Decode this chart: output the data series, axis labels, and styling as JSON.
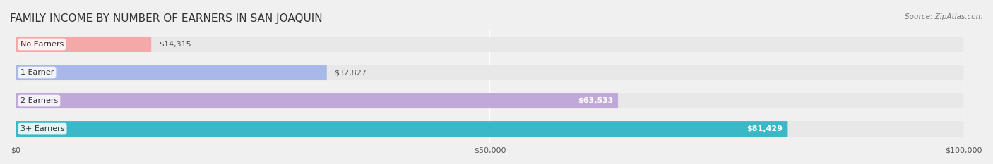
{
  "title": "FAMILY INCOME BY NUMBER OF EARNERS IN SAN JOAQUIN",
  "source": "Source: ZipAtlas.com",
  "categories": [
    "No Earners",
    "1 Earner",
    "2 Earners",
    "3+ Earners"
  ],
  "values": [
    14315,
    32827,
    63533,
    81429
  ],
  "bar_colors": [
    "#f4a8a8",
    "#a8b8e8",
    "#c0a8d8",
    "#3ab8c8"
  ],
  "label_colors": [
    "#555555",
    "#555555",
    "#ffffff",
    "#ffffff"
  ],
  "xlim": [
    0,
    100000
  ],
  "xticks": [
    0,
    50000,
    100000
  ],
  "xtick_labels": [
    "$0",
    "$50,000",
    "$100,000"
  ],
  "background_color": "#f0f0f0",
  "bar_background_color": "#e8e8e8",
  "title_fontsize": 11,
  "bar_height": 0.55,
  "figsize": [
    14.06,
    2.33
  ]
}
